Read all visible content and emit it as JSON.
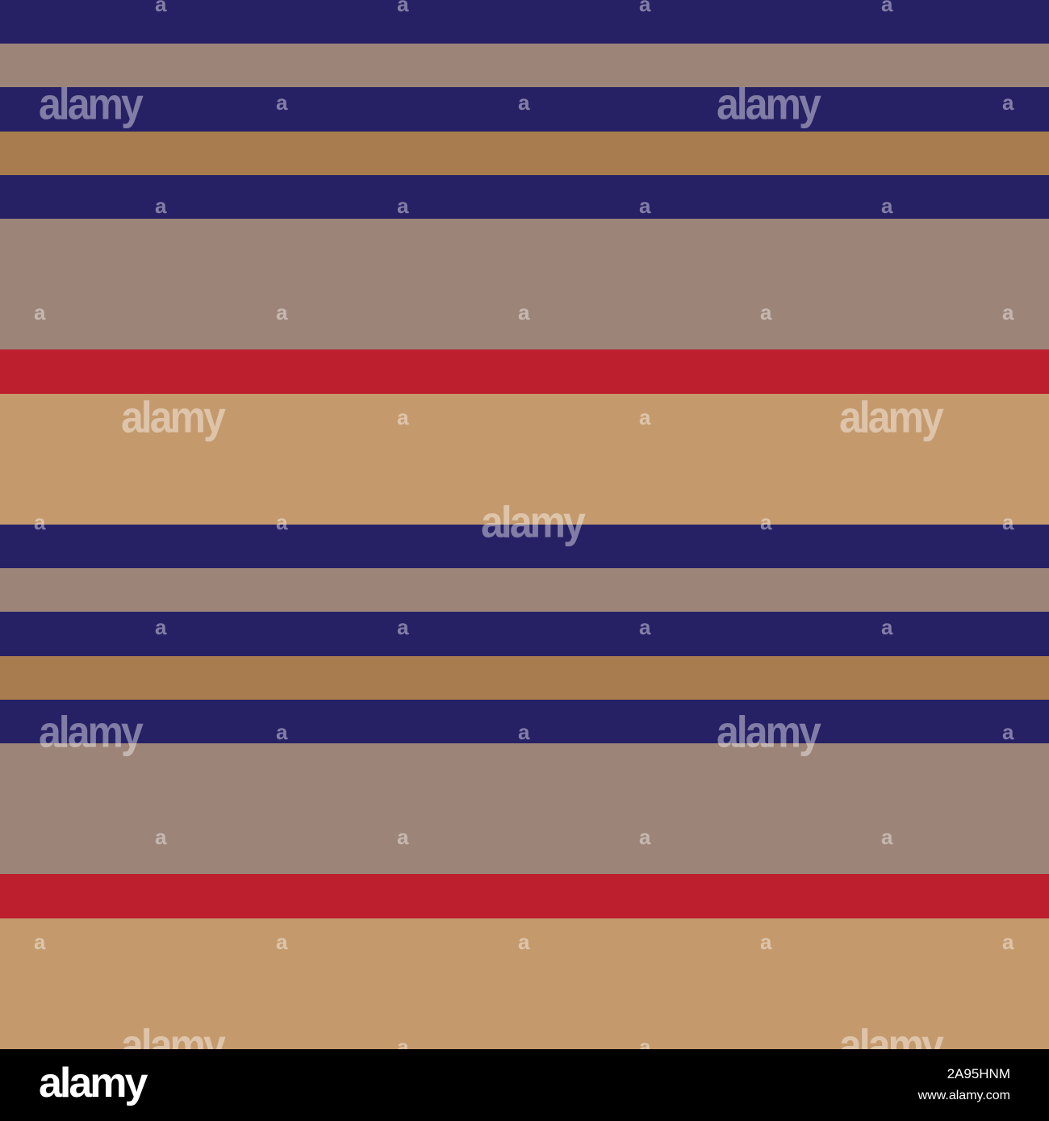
{
  "colors": {
    "navy": "#262065",
    "taupe": "#9c8478",
    "ochre": "#a87c4e",
    "red": "#be1f2f",
    "tan": "#c49a6d"
  },
  "pattern": {
    "stripes": [
      "navy",
      "taupe",
      "navy",
      "ochre",
      "navy",
      "taupe",
      "taupe",
      "taupe",
      "red",
      "tan",
      "tan",
      "tan",
      "navy",
      "taupe",
      "navy",
      "ochre",
      "navy",
      "taupe",
      "taupe",
      "taupe",
      "red",
      "tan",
      "tan",
      "tan"
    ]
  },
  "watermark": {
    "word": "alamy",
    "letter": "a"
  },
  "footer": {
    "logo": "alamy",
    "image_id": "2A95HNM",
    "url": "www.alamy.com"
  }
}
